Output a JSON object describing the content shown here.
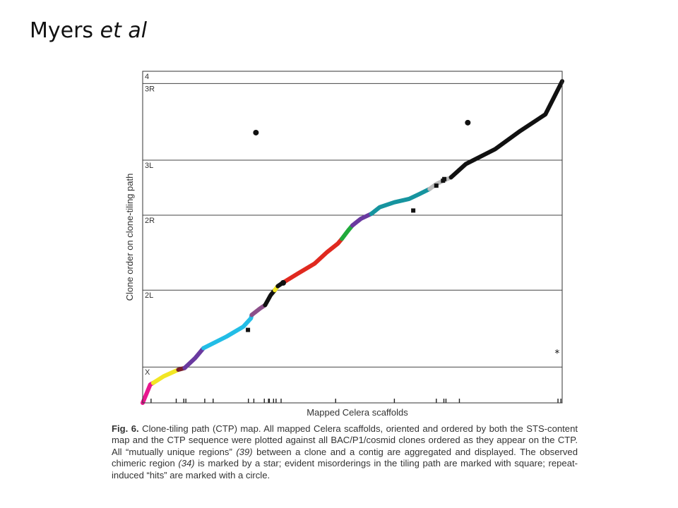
{
  "slide": {
    "title_main": "Myers ",
    "title_italic": "et al"
  },
  "caption": {
    "figure_label": "Fig. 6.",
    "segments": [
      {
        "t": " Clone-tiling path (CTP) map. All mapped Celera scaffolds, oriented and ordered by both the STS-content map and the CTP sequence were plotted against all BAC/P1/cosmid clones ordered as they appear on the CTP. All “mutually unique regions” ",
        "i": false
      },
      {
        "t": "(39)",
        "i": true
      },
      {
        "t": " between a clone and a contig are aggregated and displayed. The observed chimeric region ",
        "i": false
      },
      {
        "t": "(34)",
        "i": true
      },
      {
        "t": " is marked by a star; evident misorderings in the tiling path are marked with square; repeat-induced “hits” are marked with a circle.",
        "i": false
      }
    ]
  },
  "chart_data": {
    "type": "scatter",
    "xlabel": "Mapped Celera scaffolds",
    "ylabel": "Clone order on clone-tiling path",
    "xlim": [
      0,
      1
    ],
    "ylim": [
      0,
      1
    ],
    "chromosome_arms": [
      {
        "label": "X",
        "lo": 0.0,
        "hi": 0.108
      },
      {
        "label": "2L",
        "lo": 0.108,
        "hi": 0.34
      },
      {
        "label": "2R",
        "lo": 0.34,
        "hi": 0.566
      },
      {
        "label": "3L",
        "lo": 0.566,
        "hi": 0.732
      },
      {
        "label": "3R",
        "lo": 0.732,
        "hi": 0.963
      },
      {
        "label": "4",
        "lo": 0.963,
        "hi": 1.0
      }
    ],
    "path_segments": [
      {
        "color": "#e8178f",
        "points": [
          [
            0.0,
            0.0
          ],
          [
            0.01,
            0.03
          ],
          [
            0.018,
            0.055
          ],
          [
            0.025,
            0.06
          ]
        ]
      },
      {
        "color": "#f2e624",
        "points": [
          [
            0.025,
            0.06
          ],
          [
            0.05,
            0.08
          ],
          [
            0.085,
            0.1
          ]
        ]
      },
      {
        "color": "#7a1f2e",
        "points": [
          [
            0.085,
            0.1
          ],
          [
            0.1,
            0.105
          ]
        ]
      },
      {
        "color": "#6a3aa0",
        "points": [
          [
            0.1,
            0.105
          ],
          [
            0.125,
            0.135
          ],
          [
            0.145,
            0.165
          ]
        ]
      },
      {
        "color": "#22bde6",
        "points": [
          [
            0.145,
            0.165
          ],
          [
            0.2,
            0.2
          ],
          [
            0.24,
            0.23
          ],
          [
            0.258,
            0.255
          ],
          [
            0.26,
            0.265
          ]
        ]
      },
      {
        "color": "#8c4f8a",
        "points": [
          [
            0.26,
            0.265
          ],
          [
            0.28,
            0.285
          ],
          [
            0.292,
            0.295
          ]
        ]
      },
      {
        "color": "#111111",
        "points": [
          [
            0.292,
            0.295
          ],
          [
            0.305,
            0.325
          ],
          [
            0.315,
            0.34
          ]
        ]
      },
      {
        "color": "#f2e624",
        "points": [
          [
            0.315,
            0.34
          ],
          [
            0.322,
            0.352
          ]
        ]
      },
      {
        "color": "#111111",
        "points": [
          [
            0.322,
            0.352
          ],
          [
            0.335,
            0.363
          ]
        ]
      },
      {
        "color": "#e0291f",
        "points": [
          [
            0.335,
            0.363
          ],
          [
            0.37,
            0.39
          ],
          [
            0.41,
            0.42
          ],
          [
            0.44,
            0.455
          ],
          [
            0.465,
            0.48
          ],
          [
            0.475,
            0.495
          ]
        ]
      },
      {
        "color": "#1faa3b",
        "points": [
          [
            0.475,
            0.495
          ],
          [
            0.49,
            0.52
          ],
          [
            0.5,
            0.535
          ]
        ]
      },
      {
        "color": "#6a3aa0",
        "points": [
          [
            0.5,
            0.535
          ],
          [
            0.52,
            0.555
          ],
          [
            0.545,
            0.57
          ]
        ]
      },
      {
        "color": "#16949f",
        "points": [
          [
            0.545,
            0.57
          ],
          [
            0.565,
            0.59
          ],
          [
            0.6,
            0.605
          ],
          [
            0.635,
            0.615
          ],
          [
            0.66,
            0.63
          ],
          [
            0.684,
            0.645
          ]
        ]
      },
      {
        "color": "#bbbbbb",
        "points": [
          [
            0.684,
            0.645
          ],
          [
            0.7,
            0.66
          ],
          [
            0.72,
            0.672
          ],
          [
            0.735,
            0.68
          ]
        ]
      },
      {
        "color": "#111111",
        "points": [
          [
            0.735,
            0.68
          ],
          [
            0.77,
            0.72
          ],
          [
            0.84,
            0.765
          ],
          [
            0.9,
            0.82
          ],
          [
            0.96,
            0.87
          ],
          [
            0.98,
            0.92
          ],
          [
            1.0,
            0.97
          ]
        ]
      }
    ],
    "circles": [
      {
        "x": 0.27,
        "y": 0.815
      },
      {
        "x": 0.775,
        "y": 0.845
      },
      {
        "x": 0.335,
        "y": 0.362
      }
    ],
    "squares": [
      {
        "x": 0.251,
        "y": 0.22
      },
      {
        "x": 0.645,
        "y": 0.58
      },
      {
        "x": 0.7,
        "y": 0.655
      },
      {
        "x": 0.716,
        "y": 0.67
      },
      {
        "x": 0.719,
        "y": 0.675
      }
    ],
    "stars": [
      {
        "x": 0.988,
        "y": 0.15
      }
    ],
    "x_ticks": [
      0.02,
      0.08,
      0.098,
      0.103,
      0.148,
      0.168,
      0.252,
      0.265,
      0.29,
      0.3,
      0.302,
      0.312,
      0.318,
      0.33,
      0.46,
      0.6,
      0.7,
      0.718,
      0.723,
      0.755,
      0.99,
      0.997
    ]
  }
}
